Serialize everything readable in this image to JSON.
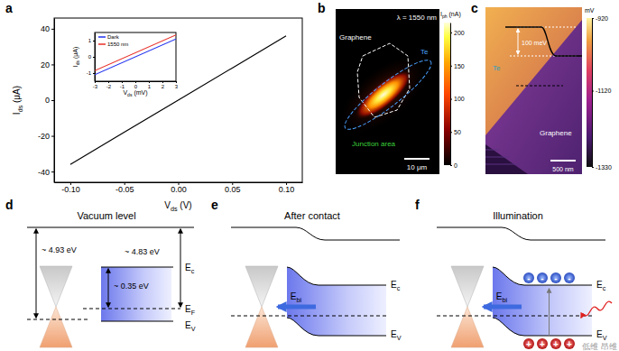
{
  "chart_data": [
    {
      "type": "line",
      "x": [
        -0.1,
        -0.05,
        0,
        0.05,
        0.1
      ],
      "values": [
        -36,
        -18,
        0,
        18,
        36
      ],
      "color": "#000000",
      "xlim": [
        -0.115,
        0.115
      ],
      "ylim": [
        -46,
        46
      ],
      "xticks": [
        {
          "value": -0.1,
          "label": "-0.10"
        },
        {
          "value": -0.05,
          "label": "-0.05"
        },
        {
          "value": 0,
          "label": "0.00"
        },
        {
          "value": 0.05,
          "label": "0.05"
        },
        {
          "value": 0.1,
          "label": "0.10"
        }
      ],
      "yticks": [
        -40,
        -20,
        0,
        20,
        40
      ],
      "xlabel": "Vds (V)",
      "ylabel": "Ids (μA)"
    },
    {
      "type": "line",
      "x": [
        -3,
        3
      ],
      "series": [
        {
          "name": "Dark",
          "color": "#2233ee",
          "values": [
            -1.1,
            1.1
          ]
        },
        {
          "name": "1550 nm",
          "color": "#e8302a",
          "values": [
            -0.85,
            1.35
          ]
        }
      ],
      "xlim": [
        -3,
        3
      ],
      "ylim": [
        -1.5,
        1.5
      ],
      "xticks": [
        -3,
        -2,
        -1,
        0,
        1,
        2,
        3
      ],
      "yticks": [
        -1,
        0,
        1
      ],
      "xlabel": "Vds (mV)",
      "ylabel": "Ids (μA)",
      "legend": "upper left"
    }
  ],
  "panel_labels": [
    "a",
    "b",
    "c",
    "d",
    "e",
    "f"
  ],
  "panel_b": {
    "wavelength": "λ = 1550 nm",
    "colorbar": {
      "label": "Iph (nA)",
      "range": [
        0,
        215
      ],
      "ticks": [
        0,
        50,
        100,
        150,
        200
      ]
    },
    "graphene": "Graphene",
    "te": "Te",
    "junction": "Junction area",
    "scale_bar": "10 μm"
  },
  "panel_c": {
    "colorbar": {
      "label": "mV",
      "range": [
        -1330,
        -920
      ],
      "ticks": [
        -920,
        -1120,
        -1330
      ]
    },
    "te": "Te",
    "graphene": "Graphene",
    "step": "100 meV",
    "scale_bar": "500 nm"
  },
  "panel_d": {
    "title": "Vacuum level",
    "graphene_wf": "~ 4.93 eV",
    "te_wf": "~ 4.83 eV",
    "te_gap": "~ 0.35 eV",
    "ec": "Ec",
    "ef": "EF",
    "ev": "EV"
  },
  "panel_e": {
    "title": "After contact",
    "ebi": "Ebi",
    "ec": "Ec",
    "ev": "EV"
  },
  "panel_f": {
    "title": "Illumination",
    "ebi": "Ebi",
    "ec": "Ec",
    "ev": "EV",
    "electron": "-",
    "hole": "+"
  },
  "watermark": "低维 昂维"
}
